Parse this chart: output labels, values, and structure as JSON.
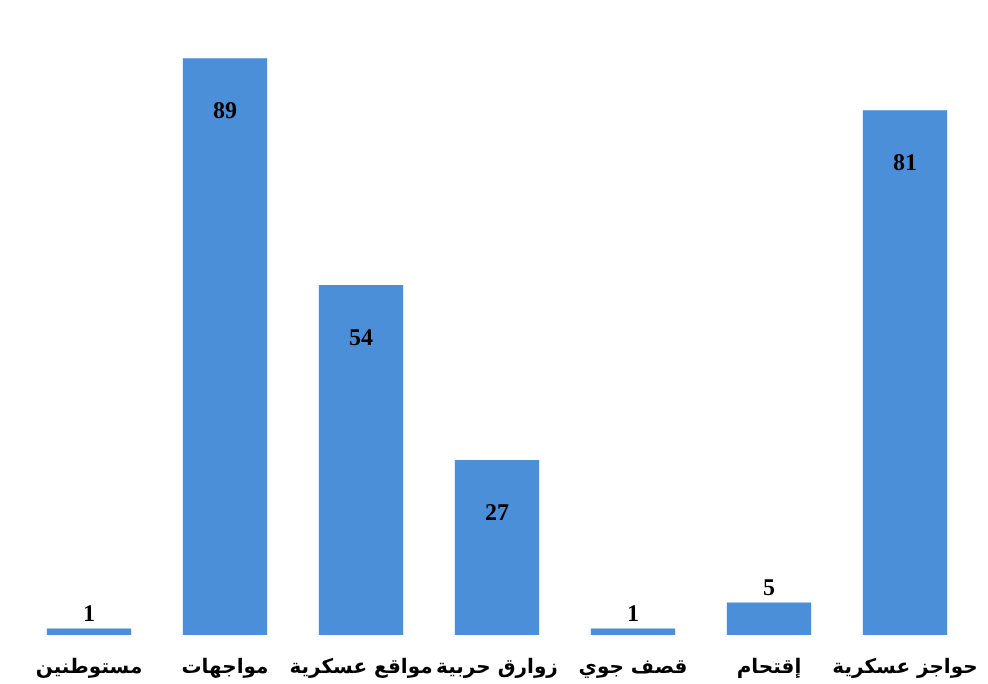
{
  "chart_data": {
    "type": "bar",
    "categories": [
      "مستوطنين",
      "مواجهات",
      "مواقع عسكرية",
      "زوارق حربية",
      "قصف جوي",
      "إقتحام",
      "حواجز عسكرية"
    ],
    "values": [
      1,
      89,
      54,
      27,
      1,
      5,
      81
    ],
    "color": "#4a8fd8",
    "data_labels": true
  }
}
